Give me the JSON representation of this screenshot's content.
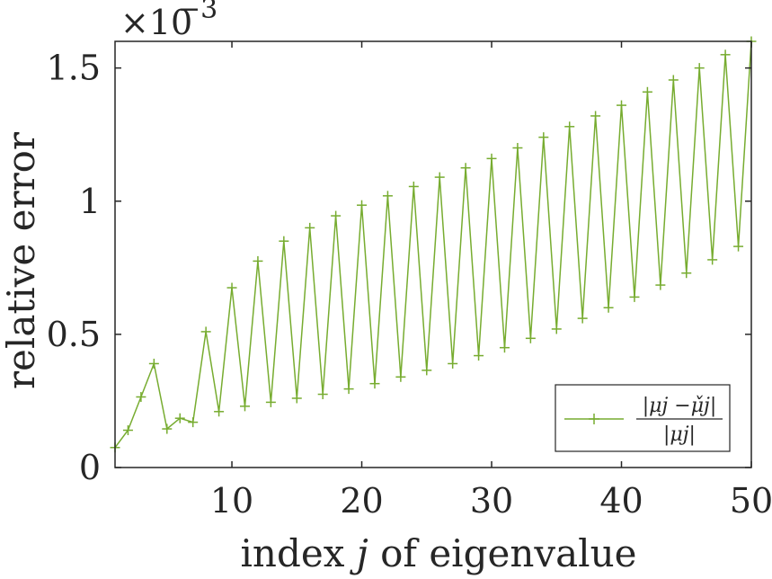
{
  "chart_data": {
    "type": "line",
    "title": "",
    "xlabel_prefix": "index ",
    "xlabel_var": "j",
    "xlabel_suffix": " of eigenvalue",
    "ylabel": "relative error",
    "y_multiplier": "×10",
    "y_exponent": "−3",
    "xlim": [
      1,
      50
    ],
    "ylim": [
      0,
      1.6
    ],
    "xticks": [
      10,
      20,
      30,
      40,
      50
    ],
    "xtick_labels": [
      "10",
      "20",
      "30",
      "40",
      "50"
    ],
    "yticks": [
      0,
      0.5,
      1,
      1.5
    ],
    "ytick_labels": [
      "0",
      "0.5",
      "1",
      "1.5"
    ],
    "grid": false,
    "legend_position": "bottom-right",
    "series": [
      {
        "name": "|μj − μ̌j| / |μj|",
        "legend_numerator": "|μj −μ̌j|",
        "legend_denominator": "|μj|",
        "color": "#77ac30",
        "marker": "+",
        "x": [
          1,
          2,
          3,
          4,
          5,
          6,
          7,
          8,
          9,
          10,
          11,
          12,
          13,
          14,
          15,
          16,
          17,
          18,
          19,
          20,
          21,
          22,
          23,
          24,
          25,
          26,
          27,
          28,
          29,
          30,
          31,
          32,
          33,
          34,
          35,
          36,
          37,
          38,
          39,
          40,
          41,
          42,
          43,
          44,
          45,
          46,
          47,
          48,
          49,
          50
        ],
        "values": [
          0.075,
          0.14,
          0.265,
          0.39,
          0.145,
          0.185,
          0.17,
          0.51,
          0.21,
          0.675,
          0.23,
          0.775,
          0.245,
          0.85,
          0.26,
          0.9,
          0.275,
          0.945,
          0.295,
          0.985,
          0.315,
          1.02,
          0.34,
          1.055,
          0.365,
          1.09,
          0.39,
          1.125,
          0.42,
          1.16,
          0.45,
          1.2,
          0.485,
          1.24,
          0.52,
          1.28,
          0.56,
          1.32,
          0.6,
          1.36,
          0.64,
          1.41,
          0.685,
          1.455,
          0.73,
          1.5,
          0.78,
          1.55,
          0.83,
          1.6
        ]
      }
    ]
  }
}
